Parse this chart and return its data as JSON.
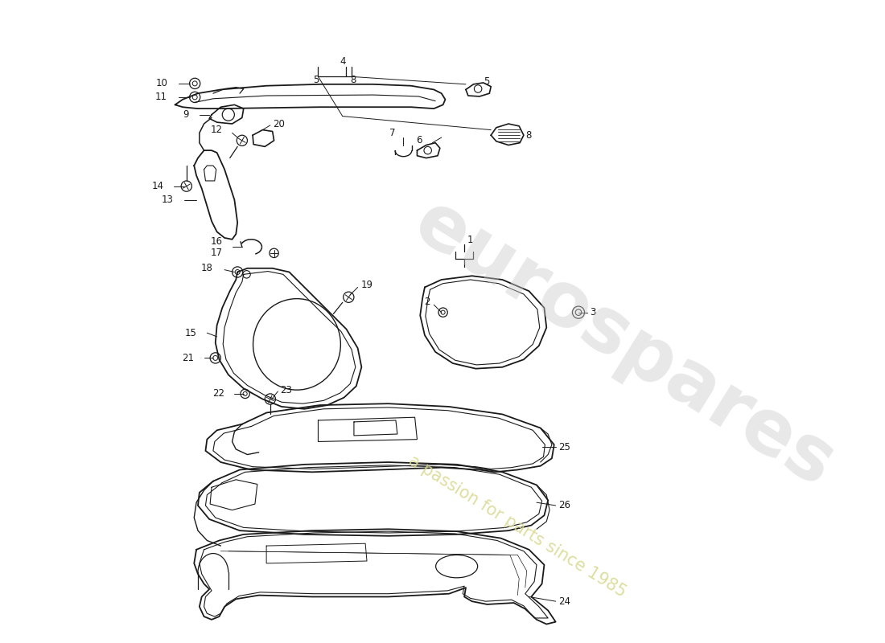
{
  "background_color": "#ffffff",
  "line_color": "#1a1a1a",
  "watermark_text1": "eurospares",
  "watermark_text2": "a passion for parts since 1985",
  "watermark_color": "#cccccc",
  "watermark_color2": "#d8d890",
  "fig_width": 11.0,
  "fig_height": 8.0,
  "dpi": 100
}
